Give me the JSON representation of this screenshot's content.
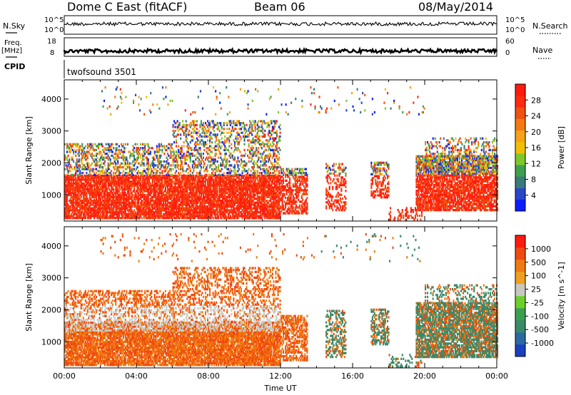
{
  "header": {
    "station": "Dome C East (fitACF)",
    "beam": "Beam 06",
    "date": "08/May/2014"
  },
  "status_panels": {
    "nsky_label": "N.Sky",
    "nsearch_label": "N.Search",
    "freq_label_line1": "Freq.",
    "freq_label_line2": "[MHz]",
    "nave_label": "Nave",
    "cpid_label": "CPID",
    "left_ticks_top": [
      "10^5",
      "10^0"
    ],
    "right_ticks_top": [
      "10^5",
      "10^0"
    ],
    "left_ticks_freq": [
      "18",
      "8"
    ],
    "right_ticks_nave": [
      "60",
      "0"
    ],
    "cpid_text": "twofsound 3501"
  },
  "chart_data": [
    {
      "type": "heatmap",
      "name": "power",
      "ylabel": "Slant Range [km]",
      "xlabel": "",
      "y_ticks": [
        1000,
        2000,
        3000,
        4000
      ],
      "ylim": [
        180,
        4600
      ],
      "xlim_hours": [
        0,
        24
      ],
      "colorbar_label": "Power [dB]",
      "colorbar_ticks": [
        "4",
        "8",
        "12",
        "16",
        "20",
        "24",
        "28"
      ],
      "colorbar_colors": [
        "#0a1fff",
        "#2a46c8",
        "#3a7a7a",
        "#3f9f50",
        "#7ec82a",
        "#f0c000",
        "#f7a018",
        "#f47a10",
        "#f05010",
        "#ff2a10",
        "#ff1a10"
      ],
      "dominant_value": "28 (strong echoes 300–1600 km)"
    },
    {
      "type": "heatmap",
      "name": "velocity",
      "ylabel": "Slant Range [km]",
      "xlabel": "Time UT",
      "y_ticks": [
        1000,
        2000,
        3000,
        4000
      ],
      "ylim": [
        180,
        4600
      ],
      "x_ticks": [
        "00:00",
        "04:00",
        "08:00",
        "12:00",
        "16:00",
        "20:00",
        "00:00"
      ],
      "colorbar_label": "Velocity [m s^-1]",
      "colorbar_ticks": [
        "1000",
        "500",
        "100",
        "25",
        "-25",
        "-100",
        "-500",
        "-1000"
      ],
      "colorbar_colors": [
        "#1a3fc0",
        "#2a6aa0",
        "#3a8a6a",
        "#3aa050",
        "#6cd02a",
        "#c8c8c0",
        "#f0a020",
        "#f07a10",
        "#f04a10",
        "#ff1a10"
      ]
    }
  ],
  "colors": {
    "power_high": "#ff1a10",
    "velocity_ground": "#c8c8c0",
    "velocity_negative": "#f07a10",
    "velocity_positive": "#3a8a6a"
  }
}
